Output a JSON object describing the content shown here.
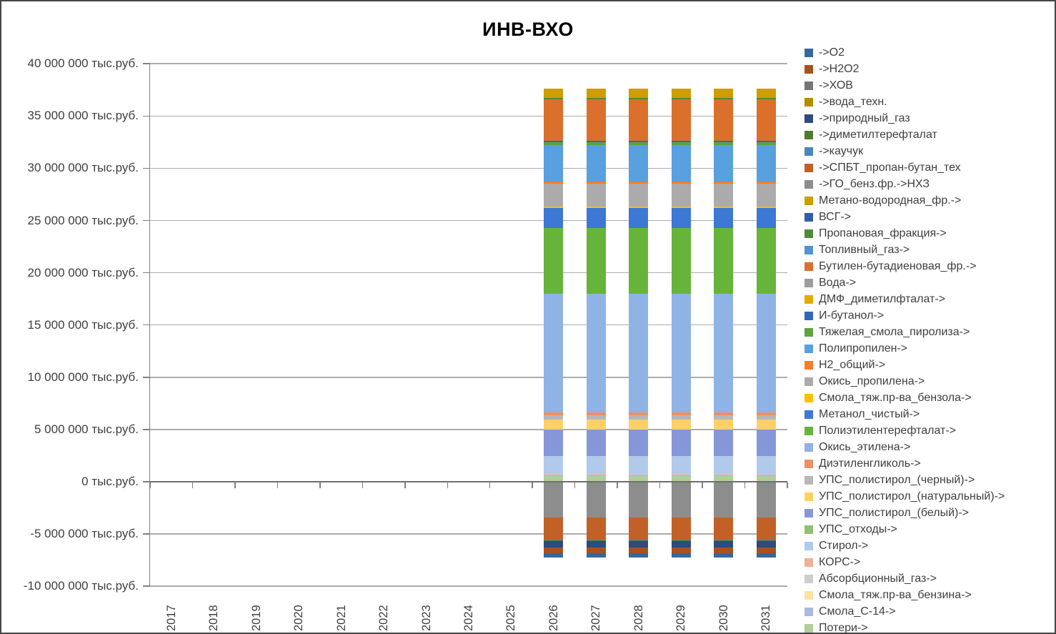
{
  "title": "ИНВ-ВХО",
  "chart_data": {
    "type": "bar",
    "stacked": true,
    "unit": "тыс.руб.",
    "title": "ИНВ-ВХО",
    "xlabel": "",
    "ylabel": "",
    "ylim": [
      -10000000,
      40000000
    ],
    "ytick_step": 5000000,
    "ytick_values": [
      40000000,
      35000000,
      30000000,
      25000000,
      20000000,
      15000000,
      10000000,
      5000000,
      0,
      -5000000,
      -10000000
    ],
    "ytick_labels": [
      "40 000 000 тыс.руб.",
      "35 000 000 тыс.руб.",
      "30 000 000 тыс.руб.",
      "25 000 000 тыс.руб.",
      "20 000 000 тыс.руб.",
      "15 000 000 тыс.руб.",
      "10 000 000 тыс.руб.",
      "5 000 000 тыс.руб.",
      "0 тыс.руб.",
      "-5 000 000 тыс.руб.",
      "-10 000 000 тыс.руб."
    ],
    "categories": [
      "2017",
      "2018",
      "2019",
      "2020",
      "2021",
      "2022",
      "2023",
      "2024",
      "2025",
      "2026",
      "2027",
      "2028",
      "2029",
      "2030",
      "2031"
    ],
    "active_categories": [
      "2026",
      "2027",
      "2028",
      "2029",
      "2030",
      "2031"
    ],
    "note": "Each series has the listed value (тыс.руб.) in every year 2026-2031 and 0 in 2017-2025. Positive stack top ≈ 37 650 000; negative stack bottom ≈ -7 280 000. Stacking order: from the zero line outward, series are stacked in descending legend order (last legend series nearest zero).",
    "legend_position": "right",
    "grid": true,
    "series": [
      {
        "name": "->O2",
        "color": "#38679B",
        "value": -470000
      },
      {
        "name": "->H2O2",
        "color": "#A9501F",
        "value": -500000
      },
      {
        "name": "->ХОВ",
        "color": "#757575",
        "value": 0
      },
      {
        "name": "->вода_техн.",
        "color": "#B68C00",
        "value": 0
      },
      {
        "name": "->природный_газ",
        "color": "#2D4B7D",
        "value": -640000
      },
      {
        "name": "->диметилтерефталат",
        "color": "#4E7B2D",
        "value": -60000
      },
      {
        "name": "->каучук",
        "color": "#4B86BA",
        "value": -100000
      },
      {
        "name": "->СПБТ_пропан-бутан_тех",
        "color": "#C26127",
        "value": -2060000
      },
      {
        "name": "->ГО_бенз.фр.->НХЗ",
        "color": "#8D8D8D",
        "value": -3450000
      },
      {
        "name": "Метано-водородная_фр.->",
        "color": "#CE9D00",
        "value": 910000
      },
      {
        "name": "ВСГ->",
        "color": "#2D60A6",
        "value": 0
      },
      {
        "name": "Пропановая_фракция->",
        "color": "#4F8B36",
        "value": 160000
      },
      {
        "name": "Топливный_газ->",
        "color": "#5194D3",
        "value": 0
      },
      {
        "name": "Бутилен-бутадиеновая_фр.->",
        "color": "#DA702B",
        "value": 3940000
      },
      {
        "name": "Вода->",
        "color": "#9D9D9D",
        "value": 0
      },
      {
        "name": "ДМФ_диметилфталат->",
        "color": "#E2AD00",
        "value": 0
      },
      {
        "name": "И-бутанол->",
        "color": "#3068BE",
        "value": 160000
      },
      {
        "name": "Тяжелая_смола_пиролиза->",
        "color": "#60A23E",
        "value": 230000
      },
      {
        "name": "Полипропилен->",
        "color": "#58A0DE",
        "value": 3490000
      },
      {
        "name": "H2_общий->",
        "color": "#F67D29",
        "value": 270000
      },
      {
        "name": "Окись_пропилена->",
        "color": "#ABABAB",
        "value": 2140000
      },
      {
        "name": "Смола_тяж.пр-ва_бензола->",
        "color": "#FFC000",
        "value": 120000
      },
      {
        "name": "Метанол_чистый->",
        "color": "#3C78D4",
        "value": 1980000
      },
      {
        "name": "Полиэтилентерефталат->",
        "color": "#67B43A",
        "value": 6250000
      },
      {
        "name": "Окись_этилена->",
        "color": "#8FB3E5",
        "value": 11360000
      },
      {
        "name": "Диэтиленгликоль->",
        "color": "#EE8F66",
        "value": 270000
      },
      {
        "name": "УПС_полистирол_(черный)->",
        "color": "#B7B7B7",
        "value": 410000
      },
      {
        "name": "УПС_полистирол_(натуральный)->",
        "color": "#FFD065",
        "value": 960000
      },
      {
        "name": "УПС_полистирол_(белый)->",
        "color": "#8597D8",
        "value": 2560000
      },
      {
        "name": "УПС_отходы->",
        "color": "#91C072",
        "value": 0
      },
      {
        "name": "Стирол->",
        "color": "#B1CAEC",
        "value": 1750000
      },
      {
        "name": "КОРС->",
        "color": "#F2B098",
        "value": 90000
      },
      {
        "name": "Абсорбционный_газ->",
        "color": "#CDCDCD",
        "value": 0
      },
      {
        "name": "Смола_тяж.пр-ва_бензина->",
        "color": "#FFE1A0",
        "value": 0
      },
      {
        "name": "Смола_С-14->",
        "color": "#ABBAE2",
        "value": 50000
      },
      {
        "name": "Потери->",
        "color": "#B1CF99",
        "value": 550000
      }
    ]
  }
}
